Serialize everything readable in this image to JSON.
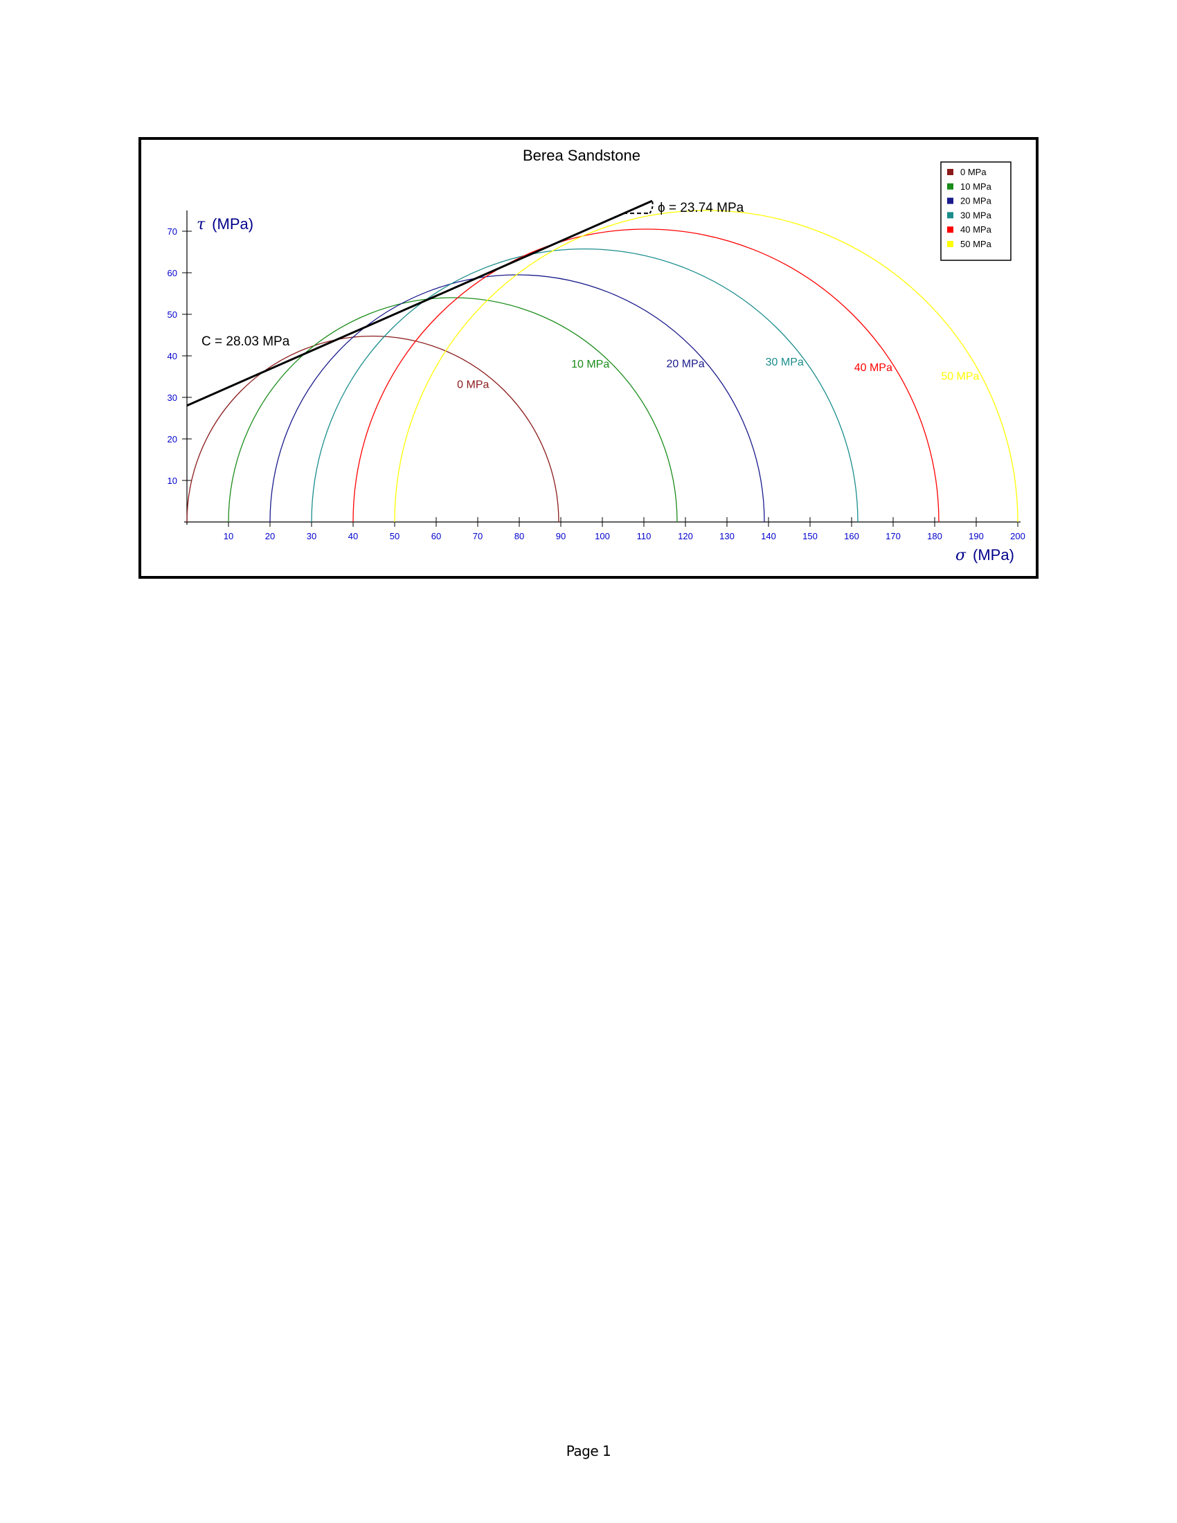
{
  "chart_data": {
    "type": "mohr-circles",
    "title": "Berea Sandstone",
    "xlabel_symbol": "σ",
    "xlabel_unit": "(MPa)",
    "ylabel_symbol": "τ",
    "ylabel_unit": "(MPa)",
    "xlim": [
      0,
      200
    ],
    "ylim": [
      0,
      75
    ],
    "x_ticks": [
      10,
      20,
      30,
      40,
      50,
      60,
      70,
      80,
      90,
      100,
      110,
      120,
      130,
      140,
      150,
      160,
      170,
      180,
      190,
      200
    ],
    "y_ticks": [
      10,
      20,
      30,
      40,
      50,
      60,
      70
    ],
    "legend_position": "top-right",
    "series": [
      {
        "name": "0 MPa",
        "sigma3": 0,
        "sigma1": 89.5,
        "color": "#8B1A1A",
        "label": "0 MPa"
      },
      {
        "name": "10 MPa",
        "sigma3": 10,
        "sigma1": 118,
        "color": "#1A8C1A",
        "label": "10 MPa"
      },
      {
        "name": "20 MPa",
        "sigma3": 20,
        "sigma1": 139,
        "color": "#1A1A8C",
        "label": "20 MPa"
      },
      {
        "name": "30 MPa",
        "sigma3": 30,
        "sigma1": 161.5,
        "color": "#1A8C8C",
        "label": "30 MPa"
      },
      {
        "name": "40 MPa",
        "sigma3": 40,
        "sigma1": 181,
        "color": "#FF0000",
        "label": "40 MPa"
      },
      {
        "name": "50 MPa",
        "sigma3": 50,
        "sigma1": 200,
        "color": "#FFFF00",
        "label": "50 MPa"
      }
    ],
    "envelope": {
      "intercept": 28.03,
      "x_end": 112,
      "cohesion_label": "C = 28.03 MPa",
      "phi_label": "ϕ = 23.74 MPa"
    }
  },
  "footer": {
    "page_label": "Page 1"
  },
  "colors": {
    "axis": "#000000",
    "tick_label": "#0000CC",
    "axis_label": "#00008B",
    "envelope": "#000000"
  }
}
